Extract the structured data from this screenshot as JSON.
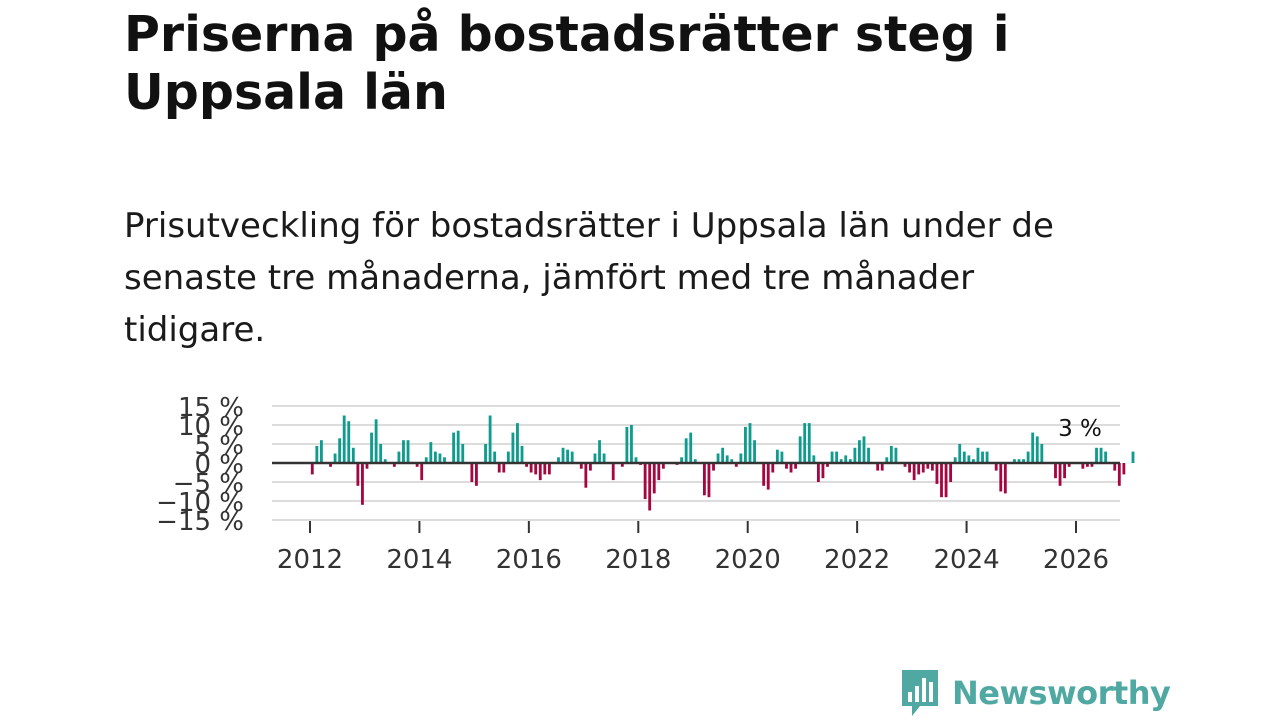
{
  "header": {
    "title": "Priserna på bostadsrätter steg i Uppsala län",
    "subtitle": "Prisutveckling för bostadsrätter i Uppsala län under de senaste tre månaderna, jämfört med tre månader tidigare."
  },
  "brand": {
    "name": "Newsworthy",
    "color": "#4fa8a2"
  },
  "colors": {
    "positive": "#0f9b8e",
    "negative": "#a5063f",
    "grid": "#dcdcdc",
    "baseline": "#333333",
    "text": "#333333"
  },
  "chart_data": {
    "type": "bar",
    "title": "Prisutveckling för bostadsrätter i Uppsala län under de senaste tre månaderna, jämfört med tre månader tidigare.",
    "xlabel": "",
    "ylabel": "",
    "ylim": [
      -15,
      15
    ],
    "y_ticks": [
      15,
      10,
      5,
      0,
      -5,
      -10,
      -15
    ],
    "y_tick_labels": [
      "15 %",
      "10 %",
      "5 %",
      "0 %",
      "−5 %",
      "−10 %",
      "−15 %"
    ],
    "x_tick_values": [
      2012,
      2014,
      2016,
      2018,
      2020,
      2022,
      2024,
      2026
    ],
    "x_tick_labels": [
      "2012",
      "2014",
      "2016",
      "2018",
      "2020",
      "2022",
      "2024",
      "2026"
    ],
    "start": {
      "year": 2012,
      "month": 1
    },
    "unit": "%",
    "annotation": "3 %",
    "values": [
      -3,
      4.5,
      6,
      0,
      -1,
      2.5,
      6.5,
      12.5,
      11,
      4,
      -6,
      -11,
      -1.5,
      8,
      11.5,
      5,
      1,
      0,
      -1,
      3,
      6,
      6,
      0,
      -1,
      -4.5,
      1.5,
      5.5,
      3,
      2.5,
      1.5,
      0,
      8,
      8.5,
      5,
      0,
      -5,
      -6,
      0,
      5,
      12.5,
      3,
      -2.5,
      -2.5,
      3,
      8,
      10.5,
      4.5,
      -1,
      -2.5,
      -3,
      -4.5,
      -3,
      -3,
      0,
      1.5,
      4,
      3.5,
      3,
      0,
      -1.5,
      -6.5,
      -2,
      2.5,
      6,
      2.5,
      0,
      -4.5,
      0,
      -1,
      9.5,
      10,
      1.5,
      -0.5,
      -9.5,
      -12.5,
      -8,
      -4.5,
      -1.5,
      0,
      0,
      -0.5,
      1.5,
      6.5,
      8,
      1,
      0,
      -8.5,
      -9,
      -2,
      2.5,
      4,
      2,
      1,
      -1,
      2.5,
      9.5,
      10.5,
      6,
      0,
      -6,
      -7,
      -2.5,
      3.5,
      3,
      -1.5,
      -2.5,
      -1.5,
      7,
      10.5,
      10.5,
      2,
      -5,
      -4,
      -1,
      3,
      3,
      1,
      2,
      1,
      4,
      6,
      7,
      4,
      0,
      -2,
      -2,
      1.5,
      4.5,
      4,
      0,
      -1,
      -2.5,
      -4.5,
      -3,
      -2.5,
      -1.5,
      -2,
      -5.5,
      -9,
      -9,
      -5,
      1.5,
      5,
      3,
      2,
      1,
      4,
      3,
      3,
      0,
      -2,
      -7.5,
      -8,
      0,
      1,
      1,
      1,
      3,
      8,
      7,
      5,
      0,
      0,
      -4,
      -6,
      -4,
      -1,
      0,
      0,
      -1.5,
      -1,
      -1,
      4,
      4,
      3,
      0,
      -2,
      -6,
      -3,
      0,
      3
    ]
  }
}
